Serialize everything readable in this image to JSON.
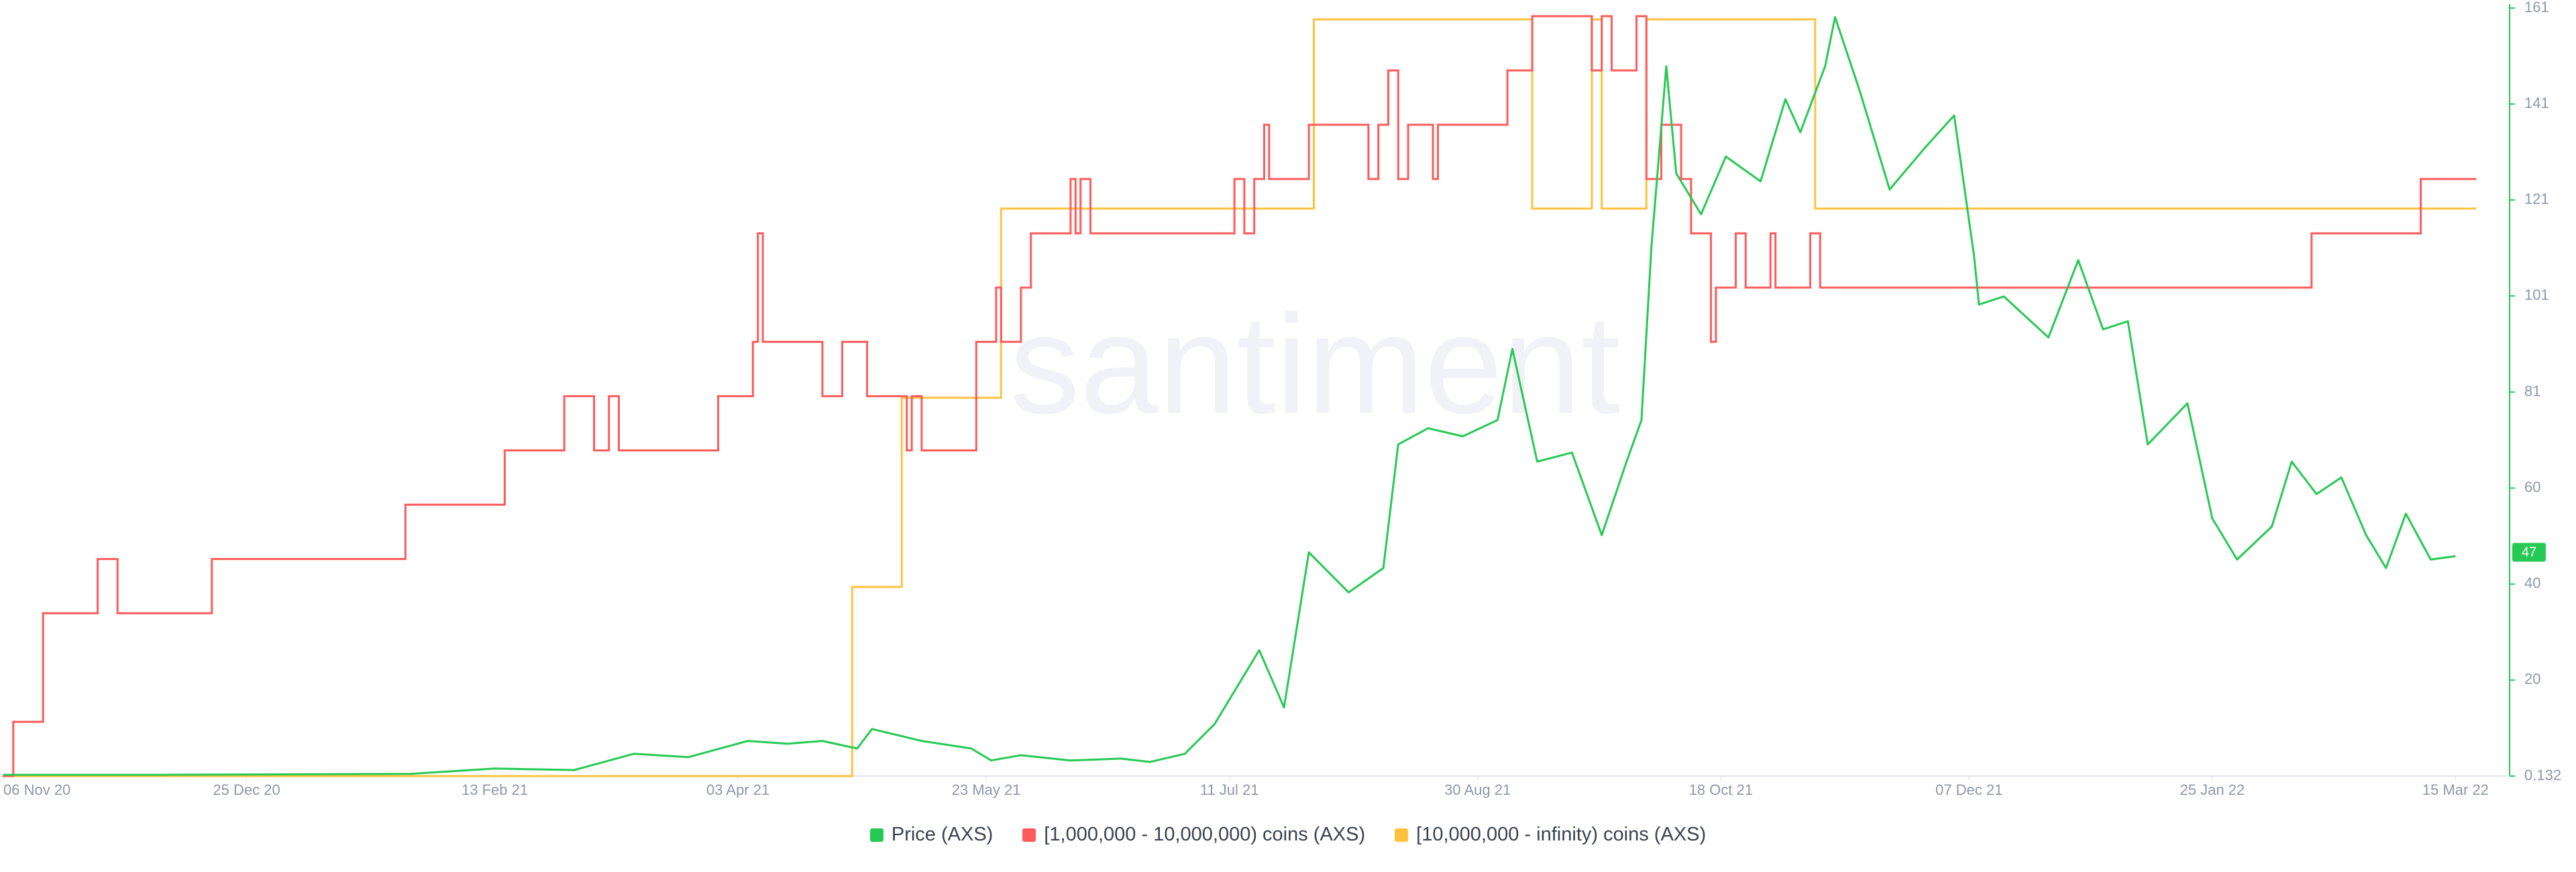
{
  "chart_data": {
    "type": "line",
    "watermark": "santiment",
    "xlim": [
      "2020-11-06",
      "2022-03-19"
    ],
    "xticks": [
      {
        "value": "2020-11-06",
        "label": "06 Nov 20"
      },
      {
        "value": "2020-12-25",
        "label": "25 Dec 20"
      },
      {
        "value": "2021-02-13",
        "label": "13 Feb 21"
      },
      {
        "value": "2021-04-03",
        "label": "03 Apr 21"
      },
      {
        "value": "2021-05-23",
        "label": "23 May 21"
      },
      {
        "value": "2021-07-11",
        "label": "11 Jul 21"
      },
      {
        "value": "2021-08-30",
        "label": "30 Aug 21"
      },
      {
        "value": "2021-10-18",
        "label": "18 Oct 21"
      },
      {
        "value": "2021-12-07",
        "label": "07 Dec 21"
      },
      {
        "value": "2022-01-25",
        "label": "25 Jan 22"
      },
      {
        "value": "2022-03-15",
        "label": "15 Mar 22"
      }
    ],
    "ylim": [
      0.132,
      161
    ],
    "yticks": [
      0.132,
      {
        "value": 20.24,
        "label": "20"
      },
      {
        "value": 40.35,
        "label": "40"
      },
      {
        "value": 60.46,
        "label": "60"
      },
      {
        "value": 80.57,
        "label": "81"
      },
      {
        "value": 100.7,
        "label": "101"
      },
      {
        "value": 120.8,
        "label": "121"
      },
      {
        "value": 140.9,
        "label": "141"
      },
      161
    ],
    "current_value": 47,
    "series": [
      {
        "name": "Price (AXS)",
        "color": "#26c953",
        "step": false,
        "x": [
          "2020-11-06",
          "2020-12-08",
          "2021-01-27",
          "2021-02-13",
          "2021-03-01",
          "2021-03-13",
          "2021-03-24",
          "2021-04-05",
          "2021-04-13",
          "2021-04-20",
          "2021-04-27",
          "2021-04-30",
          "2021-05-10",
          "2021-05-20",
          "2021-05-24",
          "2021-05-30",
          "2021-06-09",
          "2021-06-19",
          "2021-06-25",
          "2021-07-02",
          "2021-07-08",
          "2021-07-17",
          "2021-07-22",
          "2021-07-27",
          "2021-08-04",
          "2021-08-11",
          "2021-08-14",
          "2021-08-20",
          "2021-08-27",
          "2021-09-03",
          "2021-09-06",
          "2021-09-11",
          "2021-09-18",
          "2021-09-24",
          "2021-09-29",
          "2021-10-02",
          "2021-10-04",
          "2021-10-07",
          "2021-10-09",
          "2021-10-14",
          "2021-10-19",
          "2021-10-26",
          "2021-10-31",
          "2021-11-03",
          "2021-11-08",
          "2021-11-10",
          "2021-11-15",
          "2021-11-21",
          "2021-11-28",
          "2021-12-04",
          "2021-12-08",
          "2021-12-09",
          "2021-12-14",
          "2021-12-23",
          "2021-12-29",
          "2022-01-03",
          "2022-01-08",
          "2022-01-12",
          "2022-01-20",
          "2022-01-25",
          "2022-01-30",
          "2022-02-06",
          "2022-02-10",
          "2022-02-15",
          "2022-02-20",
          "2022-02-25",
          "2022-03-01",
          "2022-03-05",
          "2022-03-10",
          "2022-03-15"
        ],
        "values": [
          0.4,
          0.4,
          0.6,
          1.7,
          1.4,
          4.8,
          4.1,
          7.5,
          6.9,
          7.5,
          5.9,
          10,
          7.5,
          5.9,
          3.4,
          4.5,
          3.4,
          3.8,
          3.1,
          4.8,
          11,
          26.5,
          14.5,
          47,
          38.6,
          43.7,
          69.6,
          73,
          71.3,
          74.7,
          89.6,
          66,
          67.9,
          50.6,
          66,
          74.7,
          110.9,
          148.8,
          126.4,
          117.8,
          129.9,
          124.7,
          141.9,
          135,
          148.8,
          159.1,
          143.6,
          123,
          131.6,
          138.5,
          109.2,
          98.9,
          100.6,
          92,
          108.2,
          93.7,
          95.4,
          69.6,
          78.2,
          54.1,
          45.5,
          52.4,
          66,
          59.2,
          62.7,
          50.6,
          43.7,
          55.1,
          45.5,
          46.2
        ]
      },
      {
        "name": "[1,000,000 - 10,000,000) coins (AXS)",
        "color": "#ff5b5b",
        "step": true,
        "ylim": [
          0,
          14.15
        ],
        "x": [
          "2020-11-06",
          "2020-11-08",
          "2020-11-14",
          "2020-11-25",
          "2020-11-29",
          "2020-12-18",
          "2021-01-26",
          "2021-02-15",
          "2021-02-27",
          "2021-03-05",
          "2021-03-08",
          "2021-03-10",
          "2021-03-30",
          "2021-04-06",
          "2021-04-07",
          "2021-04-08",
          "2021-04-20",
          "2021-04-24",
          "2021-04-29",
          "2021-05-07",
          "2021-05-08",
          "2021-05-10",
          "2021-05-21",
          "2021-05-25",
          "2021-05-26",
          "2021-05-30",
          "2021-06-01",
          "2021-06-09",
          "2021-06-10",
          "2021-06-11",
          "2021-06-13",
          "2021-07-12",
          "2021-07-14",
          "2021-07-16",
          "2021-07-18",
          "2021-07-19",
          "2021-07-27",
          "2021-08-08",
          "2021-08-10",
          "2021-08-12",
          "2021-08-14",
          "2021-08-16",
          "2021-08-21",
          "2021-08-22",
          "2021-09-05",
          "2021-09-10",
          "2021-09-22",
          "2021-09-24",
          "2021-09-26",
          "2021-10-01",
          "2021-10-03",
          "2021-10-06",
          "2021-10-10",
          "2021-10-12",
          "2021-10-16",
          "2021-10-17",
          "2021-10-21",
          "2021-10-23",
          "2021-10-28",
          "2021-10-29",
          "2021-11-05",
          "2021-11-07",
          "2022-02-14",
          "2022-03-08"
        ],
        "values": [
          0,
          1,
          3,
          4,
          3,
          4,
          5,
          6,
          7,
          6,
          7,
          6,
          7,
          8,
          10,
          8,
          7,
          8,
          7,
          6,
          7,
          6,
          8,
          9,
          8,
          9,
          10,
          11,
          10,
          11,
          10,
          11,
          10,
          11,
          12,
          11,
          12,
          11,
          12,
          13,
          11,
          12,
          11,
          12,
          13,
          14,
          13,
          14,
          13,
          14,
          11,
          12,
          11,
          10,
          8,
          9,
          10,
          9,
          10,
          9,
          10,
          9,
          10,
          11
        ]
      },
      {
        "name": "[10,000,000 - infinity) coins (AXS)",
        "color": "#ffc23d",
        "step": true,
        "ylim": [
          0,
          4.06
        ],
        "x": [
          "2020-11-06",
          "2021-04-26",
          "2021-05-06",
          "2021-05-26",
          "2021-07-28",
          "2021-09-10",
          "2021-09-22",
          "2021-09-24",
          "2021-10-03",
          "2021-11-06"
        ],
        "values": [
          0,
          1,
          2,
          3,
          4,
          3,
          4,
          3,
          4,
          3
        ]
      }
    ]
  }
}
